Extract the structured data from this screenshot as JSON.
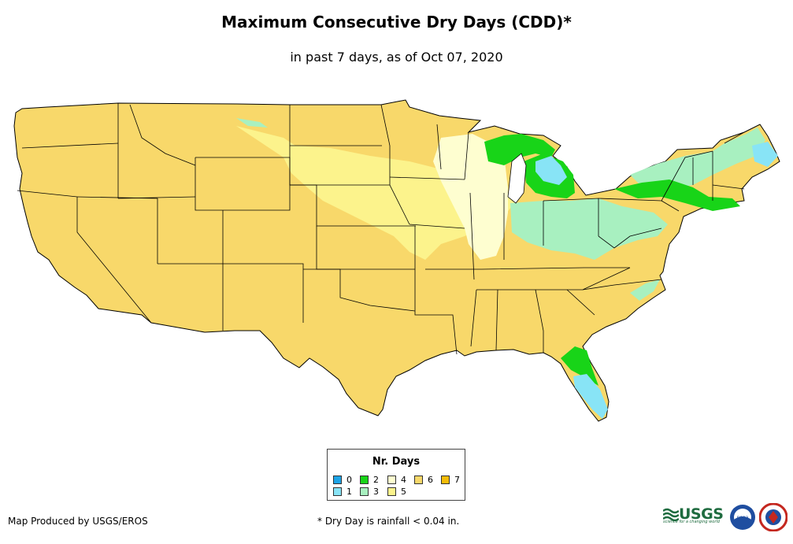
{
  "header": {
    "title": "Maximum Consecutive Dry Days (CDD)*",
    "subtitle": "in past 7 days, as of Oct 07, 2020"
  },
  "legend": {
    "title": "Nr. Days",
    "items": [
      {
        "label": "0",
        "color": "#1ea4e6"
      },
      {
        "label": "1",
        "color": "#88e4f6"
      },
      {
        "label": "2",
        "color": "#18d418"
      },
      {
        "label": "3",
        "color": "#a8f0c0"
      },
      {
        "label": "4",
        "color": "#fefed0"
      },
      {
        "label": "5",
        "color": "#fcf38c"
      },
      {
        "label": "6",
        "color": "#f8d86a"
      },
      {
        "label": "7",
        "color": "#f4bc08"
      }
    ]
  },
  "footer": {
    "credit": "Map Produced by USGS/EROS",
    "note": "* Dry Day is rainfall < 0.04 in."
  },
  "logos": {
    "usgs": "USGS",
    "usgs_tagline": "science for a changing world",
    "noaa": "noaa",
    "nws": "NATIONAL WEATHER SERVICE"
  },
  "map": {
    "base_value": "6",
    "regions": [
      {
        "name": "northern-plains",
        "days": "5"
      },
      {
        "name": "midwest",
        "days": "4"
      },
      {
        "name": "ohio-valley",
        "days": "3"
      },
      {
        "name": "michigan",
        "days": "2"
      },
      {
        "name": "florida",
        "days": "1"
      }
    ]
  }
}
